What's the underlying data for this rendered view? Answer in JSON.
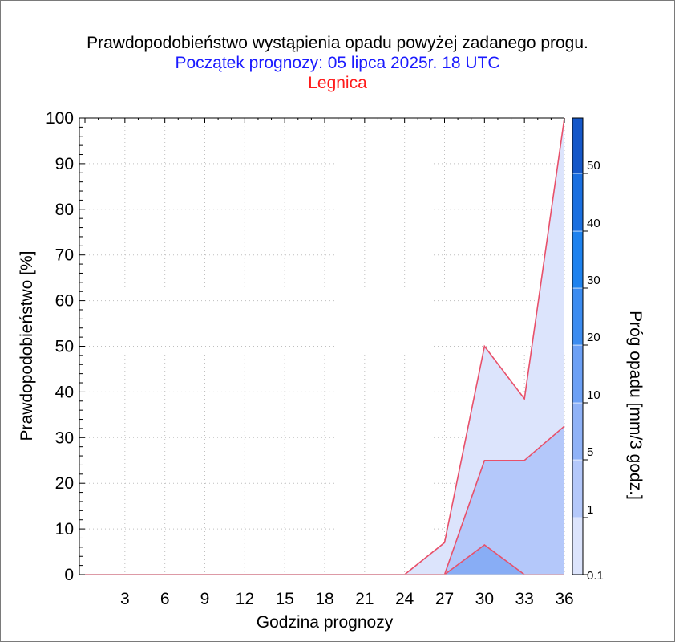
{
  "header": {
    "title": "Prawdopodobieństwo wystąpienia opadu powyżej zadanego progu.",
    "subtitle": "Początek prognozy: 05 lipca 2025r. 18 UTC",
    "location": "Legnica"
  },
  "colors": {
    "title": "#000000",
    "subtitle": "#1a1aff",
    "location": "#ff1a1a",
    "outline": "#e8506a",
    "axis": "#000000",
    "grid": "#bfbfbf"
  },
  "chart_data": {
    "type": "area",
    "xlabel": "Godzina prognozy",
    "ylabel": "Prawdopodobieństwo [%]",
    "colorbar_label": "Próg opadu [mm/3 godz.]",
    "x": [
      0,
      3,
      6,
      9,
      12,
      15,
      18,
      21,
      24,
      27,
      30,
      33,
      36
    ],
    "x_tick_labels": [
      "3",
      "6",
      "9",
      "12",
      "15",
      "18",
      "21",
      "24",
      "27",
      "30",
      "33",
      "36"
    ],
    "y_tick_labels": [
      "0",
      "10",
      "20",
      "30",
      "40",
      "50",
      "60",
      "70",
      "80",
      "90",
      "100"
    ],
    "xlim": [
      0,
      36
    ],
    "ylim": [
      0,
      100
    ],
    "grid": true,
    "series": [
      {
        "name": "0.1",
        "color": "#dce4fc",
        "values": [
          0,
          0,
          0,
          0,
          0,
          0,
          0,
          0,
          0,
          7,
          50,
          38.5,
          100
        ]
      },
      {
        "name": "1",
        "color": "#b4c8fa",
        "values": [
          0,
          0,
          0,
          0,
          0,
          0,
          0,
          0,
          0,
          0,
          25,
          25,
          32.5
        ]
      },
      {
        "name": "5",
        "color": "#88adf5",
        "values": [
          0,
          0,
          0,
          0,
          0,
          0,
          0,
          0,
          0,
          0,
          6.5,
          0,
          0
        ]
      }
    ],
    "colorbar": {
      "levels": [
        "0.1",
        "1",
        "5",
        "10",
        "20",
        "30",
        "40",
        "50"
      ],
      "level_values": [
        0.1,
        1,
        5,
        10,
        20,
        30,
        40,
        50,
        60
      ],
      "colors": [
        "#dce4fc",
        "#b4c8fa",
        "#8fb2f7",
        "#6ca0f5",
        "#3c8cf0",
        "#1e82ee",
        "#1a6fe0",
        "#1557c8",
        "#0c3fa8"
      ]
    }
  }
}
